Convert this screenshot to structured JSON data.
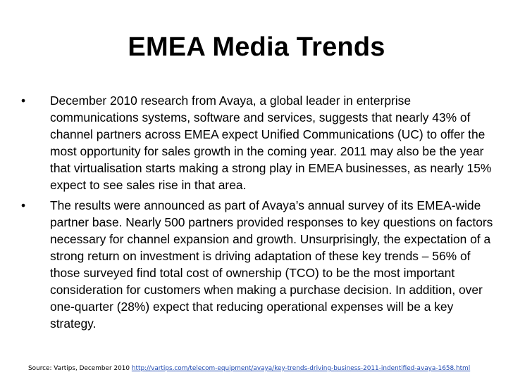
{
  "slide": {
    "title": "EMEA Media Trends",
    "bullets": [
      {
        "marker": "•",
        "text": "December 2010 research from Avaya, a global leader in enterprise communications systems, software and services, suggests that nearly 43% of channel partners across EMEA expect Unified Communications (UC) to offer the most opportunity for sales growth in the coming year. 2011 may also be the year that virtualisation starts making a strong play in EMEA businesses, as nearly 15% expect to see sales rise in that area."
      },
      {
        "marker": "•",
        "text": "The results were announced as part of Avaya’s annual survey of its EMEA-wide partner base. Nearly 500 partners provided responses to key questions on factors necessary for channel expansion and growth. Unsurprisingly, the expectation of a strong return on investment is driving adaptation of these key trends – 56% of those surveyed find total cost of ownership (TCO) to be the most important consideration for customers when making a purchase decision. In addition, over one-quarter (28%) expect that reducing operational expenses will be a key strategy."
      }
    ],
    "source": {
      "label": "Source: Vartips, December 2010",
      "url": "http://vartips.com/telecom-equipment/avaya/key-trends-driving-business-2011-indentified-avaya-1658.html"
    },
    "colors": {
      "background": "#ffffff",
      "text": "#000000",
      "link": "#1f49b0"
    }
  }
}
